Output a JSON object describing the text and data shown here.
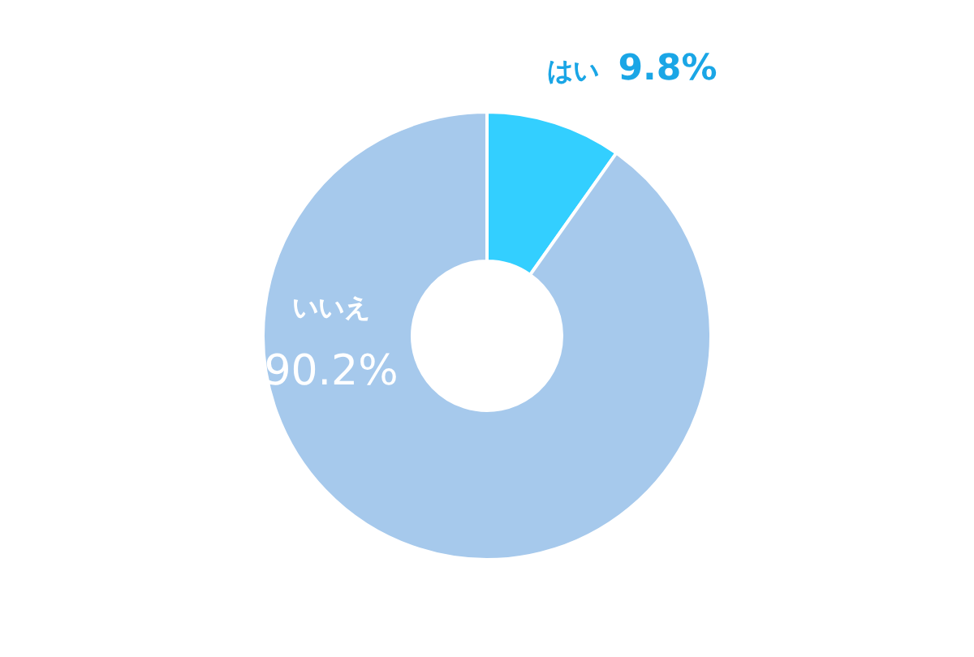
{
  "chart_data": {
    "type": "donut",
    "categories": [
      "はい",
      "いいえ"
    ],
    "values": [
      9.8,
      90.2
    ],
    "colors": [
      "#33cfff",
      "#a6c9ec"
    ],
    "value_labels": [
      "9.8%",
      "90.2%"
    ]
  }
}
